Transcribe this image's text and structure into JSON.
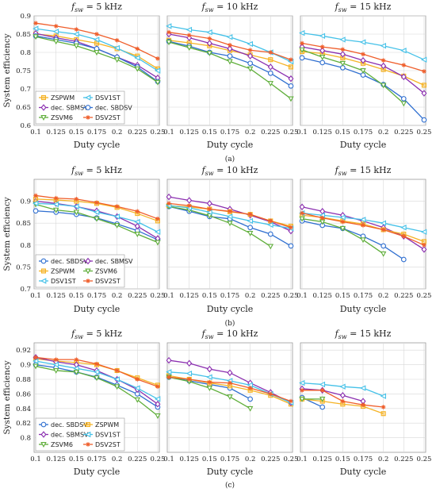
{
  "figure_labels": [
    "(a)",
    "(b)",
    "(c)"
  ],
  "chart_data": [
    {
      "row": "a",
      "type": "line",
      "ylabel": "System efficiency",
      "xlabel": "Duty cycle",
      "ylim": [
        0.6,
        0.9
      ],
      "yticks": [
        0.6,
        0.65,
        0.7,
        0.75,
        0.8,
        0.85,
        0.9
      ],
      "x": [
        0.1,
        0.125,
        0.15,
        0.175,
        0.2,
        0.225,
        0.25
      ],
      "xticks": [
        "0.1",
        "0.125",
        "0.15",
        "0.175",
        "0.2",
        "0.225",
        "0.25"
      ],
      "grid": true,
      "legend": {
        "panel": 0,
        "position": "bottom-left",
        "columns": 2,
        "order": [
          "ZSPWM",
          "DSV1ST",
          "dec. SBMSV",
          "dec. SBDSV",
          "ZSVM6",
          "DSV2ST"
        ]
      },
      "panels": [
        {
          "title": "f_sw = 5 kHz",
          "series": [
            {
              "name": "ZSPWM",
              "values": [
                0.85,
                0.845,
                0.835,
                0.825,
                0.81,
                0.79,
                0.755
              ]
            },
            {
              "name": "DSV1ST",
              "values": [
                0.865,
                0.857,
                0.85,
                0.835,
                0.812,
                0.785,
                0.75
              ]
            },
            {
              "name": "dec. SBMSV",
              "values": [
                0.852,
                0.84,
                0.83,
                0.81,
                0.787,
                0.765,
                0.73
              ]
            },
            {
              "name": "dec. SBDSV",
              "values": [
                0.845,
                0.835,
                0.825,
                0.81,
                0.787,
                0.76,
                0.72
              ]
            },
            {
              "name": "ZSVM6",
              "values": [
                0.843,
                0.83,
                0.818,
                0.8,
                0.78,
                0.755,
                0.718
              ]
            },
            {
              "name": "DSV2ST",
              "values": [
                0.88,
                0.872,
                0.863,
                0.85,
                0.833,
                0.81,
                0.783
              ]
            }
          ]
        },
        {
          "title": "f_sw = 10 kHz",
          "series": [
            {
              "name": "ZSPWM",
              "values": [
                0.833,
                0.826,
                0.818,
                0.805,
                0.793,
                0.78,
                0.76
              ]
            },
            {
              "name": "DSV1ST",
              "values": [
                0.872,
                0.862,
                0.855,
                0.842,
                0.823,
                0.8,
                0.775
              ]
            },
            {
              "name": "dec. SBMSV",
              "values": [
                0.85,
                0.84,
                0.825,
                0.81,
                0.79,
                0.76,
                0.728
              ]
            },
            {
              "name": "dec. SBDSV",
              "values": [
                0.83,
                0.817,
                0.8,
                0.79,
                0.77,
                0.743,
                0.708
              ]
            },
            {
              "name": "ZSVM6",
              "values": [
                0.828,
                0.813,
                0.798,
                0.775,
                0.755,
                0.715,
                0.673
              ]
            },
            {
              "name": "DSV2ST",
              "values": [
                0.855,
                0.847,
                0.838,
                0.82,
                0.806,
                0.8,
                0.78
              ]
            }
          ]
        },
        {
          "title": "f_sw = 15 kHz",
          "series": [
            {
              "name": "ZSPWM",
              "values": [
                0.802,
                0.797,
                0.785,
                0.77,
                0.753,
                0.735,
                0.71
              ]
            },
            {
              "name": "DSV1ST",
              "values": [
                0.853,
                0.845,
                0.835,
                0.828,
                0.818,
                0.805,
                0.78
              ]
            },
            {
              "name": "dec. SBMSV",
              "values": [
                0.815,
                0.805,
                0.795,
                0.778,
                0.763,
                0.733,
                0.688
              ]
            },
            {
              "name": "dec. SBDSV",
              "values": [
                0.785,
                0.772,
                0.758,
                0.738,
                0.712,
                0.673,
                0.615
              ]
            },
            {
              "name": "ZSVM6",
              "values": [
                0.807,
                0.787,
                0.77,
                0.75,
                0.71,
                0.66,
                null
              ]
            },
            {
              "name": "DSV2ST",
              "values": [
                0.825,
                0.815,
                0.808,
                0.795,
                0.778,
                0.765,
                0.748
              ]
            }
          ]
        }
      ]
    },
    {
      "row": "b",
      "type": "line",
      "ylabel": "System efficiency",
      "xlabel": "Duty cycle",
      "ylim": [
        0.7,
        0.95
      ],
      "yticks": [
        0.7,
        0.75,
        0.8,
        0.85,
        0.9
      ],
      "x": [
        0.1,
        0.125,
        0.15,
        0.175,
        0.2,
        0.225,
        0.25
      ],
      "xticks": [
        "0.1",
        "0.125",
        "0.15",
        "0.175",
        "0.2",
        "0.225",
        "0.25"
      ],
      "grid": true,
      "legend": {
        "panel": 0,
        "position": "bottom-left",
        "columns": 2,
        "order": [
          "dec. SBDSV",
          "dec. SBMSV",
          "ZSPWM",
          "ZSVM6",
          "DSV1ST",
          "DSV2ST"
        ]
      },
      "panels": [
        {
          "title": "f_sw = 5 kHz",
          "series": [
            {
              "name": "dec. SBDSV",
              "values": [
                0.878,
                0.875,
                0.87,
                0.862,
                0.848,
                0.833,
                0.812
              ]
            },
            {
              "name": "dec. SBMSV",
              "values": [
                0.9,
                0.895,
                0.888,
                0.878,
                0.865,
                0.843,
                0.815
              ]
            },
            {
              "name": "ZSPWM",
              "values": [
                0.905,
                0.903,
                0.9,
                0.895,
                0.886,
                0.872,
                0.855
              ]
            },
            {
              "name": "ZSVM6",
              "values": [
                0.893,
                0.88,
                0.875,
                0.86,
                0.845,
                0.825,
                0.806
              ]
            },
            {
              "name": "DSV1ST",
              "values": [
                0.895,
                0.893,
                0.888,
                0.875,
                0.865,
                0.853,
                0.83
              ]
            },
            {
              "name": "DSV2ST",
              "values": [
                0.913,
                0.907,
                0.905,
                0.897,
                0.888,
                0.877,
                0.86
              ]
            }
          ]
        },
        {
          "title": "f_sw = 10 kHz",
          "series": [
            {
              "name": "dec. SBDSV",
              "values": [
                0.888,
                0.877,
                0.865,
                0.86,
                0.84,
                0.825,
                0.798
              ]
            },
            {
              "name": "dec. SBMSV",
              "values": [
                0.91,
                0.902,
                0.895,
                0.882,
                0.868,
                0.853,
                0.832
              ]
            },
            {
              "name": "ZSPWM",
              "values": [
                0.89,
                0.887,
                0.882,
                0.876,
                0.87,
                0.855,
                0.843
              ]
            },
            {
              "name": "ZSVM6",
              "values": [
                0.888,
                0.88,
                0.867,
                0.85,
                0.827,
                0.797,
                null
              ]
            },
            {
              "name": "DSV1ST",
              "values": [
                0.89,
                0.885,
                0.875,
                0.865,
                0.855,
                0.846,
                0.838
              ]
            },
            {
              "name": "DSV2ST",
              "values": [
                0.895,
                0.89,
                0.882,
                0.877,
                0.87,
                0.855,
                0.84
              ]
            }
          ]
        },
        {
          "title": "f_sw = 15 kHz",
          "series": [
            {
              "name": "dec. SBDSV",
              "values": [
                0.855,
                0.845,
                0.838,
                0.82,
                0.798,
                0.767,
                null
              ]
            },
            {
              "name": "dec. SBMSV",
              "values": [
                0.887,
                0.877,
                0.868,
                0.855,
                0.84,
                0.82,
                0.79
              ]
            },
            {
              "name": "ZSPWM",
              "values": [
                0.868,
                0.863,
                0.855,
                0.848,
                0.835,
                0.825,
                0.808
              ]
            },
            {
              "name": "ZSVM6",
              "values": [
                0.86,
                0.853,
                0.838,
                0.812,
                0.78,
                null,
                null
              ]
            },
            {
              "name": "DSV1ST",
              "values": [
                0.873,
                0.868,
                0.863,
                0.858,
                0.85,
                0.84,
                0.83
              ]
            },
            {
              "name": "DSV2ST",
              "values": [
                0.873,
                0.862,
                0.853,
                0.845,
                0.835,
                0.82,
                0.8
              ]
            }
          ]
        }
      ]
    },
    {
      "row": "c",
      "type": "line",
      "ylabel": "System efficiency",
      "xlabel": "Duty cycle",
      "ylim": [
        0.78,
        0.93
      ],
      "yticks": [
        0.8,
        0.82,
        0.84,
        0.86,
        0.88,
        0.9,
        0.92
      ],
      "x": [
        0.1,
        0.125,
        0.15,
        0.175,
        0.2,
        0.225,
        0.25
      ],
      "xticks": [
        "0.1",
        "0.125",
        "0.15",
        "0.175",
        "0.2",
        "0.225",
        "0.25"
      ],
      "grid": true,
      "legend": {
        "panel": 0,
        "position": "bottom-left",
        "columns": 2,
        "order": [
          "dec. SBDSV",
          "ZSPWM",
          "dec. SBMSV",
          "DSV1ST",
          "ZSVM6",
          "DSV2ST"
        ]
      },
      "panels": [
        {
          "title": "f_sw = 5 kHz",
          "series": [
            {
              "name": "dec. SBDSV",
              "values": [
                0.9,
                0.896,
                0.89,
                0.883,
                0.872,
                0.86,
                0.842
              ]
            },
            {
              "name": "ZSPWM",
              "values": [
                0.908,
                0.905,
                0.903,
                0.9,
                0.892,
                0.882,
                0.872
              ]
            },
            {
              "name": "dec. SBMSV",
              "values": [
                0.91,
                0.904,
                0.9,
                0.892,
                0.88,
                0.866,
                0.846
              ]
            },
            {
              "name": "DSV1ST",
              "values": [
                0.905,
                0.9,
                0.895,
                0.89,
                0.88,
                0.868,
                0.853
              ]
            },
            {
              "name": "ZSVM6",
              "values": [
                0.898,
                0.892,
                0.89,
                0.882,
                0.87,
                0.852,
                0.83
              ]
            },
            {
              "name": "DSV2ST",
              "values": [
                0.91,
                0.907,
                0.907,
                0.901,
                0.892,
                0.88,
                0.87
              ]
            }
          ]
        },
        {
          "title": "f_sw = 10 kHz",
          "series": [
            {
              "name": "dec. SBDSV",
              "values": [
                0.883,
                0.878,
                0.873,
                0.868,
                0.853,
                null,
                null
              ]
            },
            {
              "name": "ZSPWM",
              "values": [
                0.885,
                0.88,
                0.875,
                0.871,
                0.865,
                0.858,
                0.846
              ]
            },
            {
              "name": "dec. SBMSV",
              "values": [
                0.906,
                0.902,
                0.894,
                0.889,
                0.875,
                0.862,
                0.848
              ]
            },
            {
              "name": "DSV1ST",
              "values": [
                0.89,
                0.888,
                0.883,
                0.878,
                0.872,
                0.86,
                0.848
              ]
            },
            {
              "name": "ZSVM6",
              "values": [
                0.883,
                0.877,
                0.868,
                0.856,
                0.84,
                null,
                null
              ]
            },
            {
              "name": "DSV2ST",
              "values": [
                0.883,
                0.88,
                0.876,
                0.875,
                0.868,
                0.86,
                0.85
              ]
            }
          ]
        },
        {
          "title": "f_sw = 15 kHz",
          "series": [
            {
              "name": "dec. SBDSV",
              "values": [
                0.855,
                0.842,
                null,
                null,
                null,
                null,
                null
              ]
            },
            {
              "name": "ZSPWM",
              "values": [
                0.853,
                0.85,
                0.846,
                0.843,
                0.833,
                null,
                null
              ]
            },
            {
              "name": "dec. SBMSV",
              "values": [
                0.867,
                0.865,
                0.858,
                0.85,
                null,
                null,
                null
              ]
            },
            {
              "name": "DSV1ST",
              "values": [
                0.875,
                0.873,
                0.87,
                0.868,
                0.857,
                null,
                null
              ]
            },
            {
              "name": "ZSVM6",
              "values": [
                0.853,
                0.853,
                null,
                null,
                null,
                null,
                null
              ]
            },
            {
              "name": "DSV2ST",
              "values": [
                0.865,
                0.865,
                0.85,
                0.845,
                0.842,
                null,
                null
              ]
            }
          ]
        }
      ]
    }
  ],
  "series_styles": {
    "ZSPWM": {
      "color": "#f5b325",
      "marker": "square"
    },
    "DSV1ST": {
      "color": "#44c1e8",
      "marker": "triangle-left"
    },
    "dec. SBMSV": {
      "color": "#8b2fb0",
      "marker": "diamond"
    },
    "dec. SBDSV": {
      "color": "#2f6fd0",
      "marker": "circle"
    },
    "ZSVM6": {
      "color": "#5fae3a",
      "marker": "triangle-down"
    },
    "DSV2ST": {
      "color": "#ef5d2a",
      "marker": "star"
    }
  }
}
